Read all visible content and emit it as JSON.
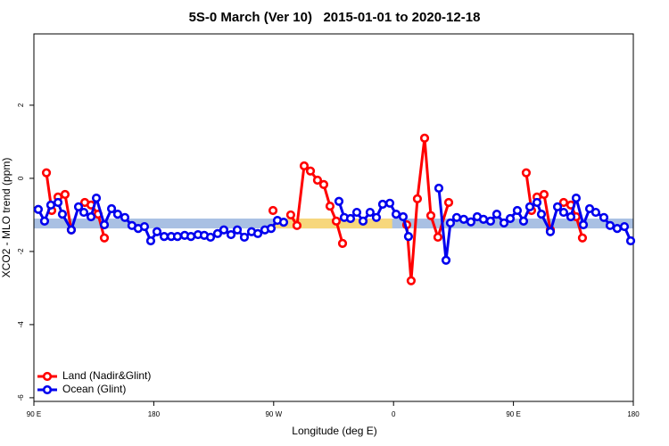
{
  "chart_data": {
    "type": "line",
    "title": "5S-0 March (Ver 10)   2015-01-01 to 2020-12-18",
    "x_label": "Longitude (deg E)",
    "y_label": "XCO2 - MLO trend (ppm)",
    "xlim": [
      90,
      540
    ],
    "ylim": [
      -6.1,
      3.95
    ],
    "xticks": [
      {
        "value": 90,
        "label": "90 E"
      },
      {
        "value": 180,
        "label": "180"
      },
      {
        "value": 270,
        "label": "90 W"
      },
      {
        "value": 360,
        "label": "0"
      },
      {
        "value": 450,
        "label": "90 E"
      },
      {
        "value": 540,
        "label": "180"
      }
    ],
    "yticks": [
      -6,
      -4,
      -2,
      0,
      2
    ],
    "band": {
      "ylim": [
        -1.37,
        -1.1
      ],
      "color": "#a9c0e3"
    },
    "band_highlights": {
      "x": [
        [
          270,
          359
        ]
      ],
      "color": "#f7d77c"
    },
    "legend": "bottom-left",
    "series": [
      {
        "name": "Land (Nadir&Glint)",
        "color": "#ff0000",
        "x": [
          99.4,
          103.4,
          108.1,
          113.4,
          118.1,
          null,
          128.2,
          132.9,
          138.2,
          142.9,
          null,
          269.5,
          null,
          282.8,
          287.5,
          292.9,
          297.6,
          302.9,
          307.6,
          312.3,
          317.0,
          321.7,
          null,
          369.9,
          373.2,
          377.9,
          383.3,
          388.0,
          393.3,
          401.4,
          null,
          459.6,
          463.6,
          467.7,
          473.0,
          477.7,
          null,
          487.7,
          493.1,
          497.1,
          501.8
        ],
        "values": [
          0.15,
          -0.88,
          -0.51,
          -0.44,
          -1.41,
          null,
          -0.66,
          -0.73,
          -0.98,
          -1.63,
          null,
          -0.88,
          null,
          -1.0,
          -1.29,
          0.34,
          0.2,
          -0.05,
          -0.17,
          -0.76,
          -1.17,
          -1.78,
          null,
          -1.27,
          -2.8,
          -0.56,
          1.1,
          -1.02,
          -1.61,
          -0.66,
          null,
          0.15,
          -0.88,
          -0.51,
          -0.44,
          -1.41,
          null,
          -0.66,
          -0.73,
          -1.05,
          -1.63
        ]
      },
      {
        "name": "Ocean (Glint)",
        "color": "#0000ee",
        "x": [
          93.3,
          98.0,
          102.7,
          108.1,
          111.4,
          118.1,
          123.5,
          127.5,
          132.9,
          136.9,
          142.9,
          148.3,
          152.9,
          158.3,
          163.6,
          168.3,
          173.0,
          177.7,
          182.4,
          187.8,
          193.1,
          197.8,
          203.2,
          207.9,
          213.2,
          217.9,
          222.6,
          227.9,
          232.6,
          238.0,
          242.7,
          248.0,
          253.4,
          258.1,
          263.4,
          268.1,
          272.8,
          277.5,
          null,
          319.0,
          323.0,
          327.7,
          332.4,
          337.1,
          342.4,
          347.1,
          351.8,
          357.2,
          361.9,
          367.2,
          371.2,
          null,
          394.0,
          399.4,
          402.7,
          407.4,
          412.7,
          418.1,
          422.8,
          427.5,
          432.8,
          437.5,
          442.9,
          447.6,
          452.9,
          457.6,
          462.3,
          467.7,
          471.0,
          477.7,
          483.1,
          487.7,
          493.1,
          497.1,
          502.5,
          507.2,
          511.8,
          517.9,
          522.6,
          527.9,
          533.3,
          538.0
        ],
        "values": [
          -0.85,
          -1.17,
          -0.73,
          -0.66,
          -0.98,
          -1.41,
          -0.78,
          -0.93,
          -1.05,
          -0.54,
          -1.27,
          -0.83,
          -0.98,
          -1.07,
          -1.29,
          -1.37,
          -1.32,
          -1.71,
          -1.46,
          -1.59,
          -1.59,
          -1.59,
          -1.56,
          -1.59,
          -1.54,
          -1.56,
          -1.61,
          -1.51,
          -1.41,
          -1.54,
          -1.41,
          -1.61,
          -1.46,
          -1.51,
          -1.41,
          -1.37,
          -1.15,
          -1.2,
          null,
          -0.63,
          -1.07,
          -1.1,
          -0.93,
          -1.17,
          -0.93,
          -1.07,
          -0.71,
          -0.68,
          -0.98,
          -1.05,
          -1.59,
          null,
          -0.27,
          -2.24,
          -1.22,
          -1.07,
          -1.12,
          -1.19,
          -1.05,
          -1.12,
          -1.17,
          -0.98,
          -1.22,
          -1.1,
          -0.88,
          -1.17,
          -0.78,
          -0.66,
          -0.98,
          -1.46,
          -0.78,
          -0.93,
          -1.05,
          -0.54,
          -1.27,
          -0.83,
          -0.93,
          -1.07,
          -1.29,
          -1.37,
          -1.32,
          -1.71
        ]
      }
    ]
  }
}
